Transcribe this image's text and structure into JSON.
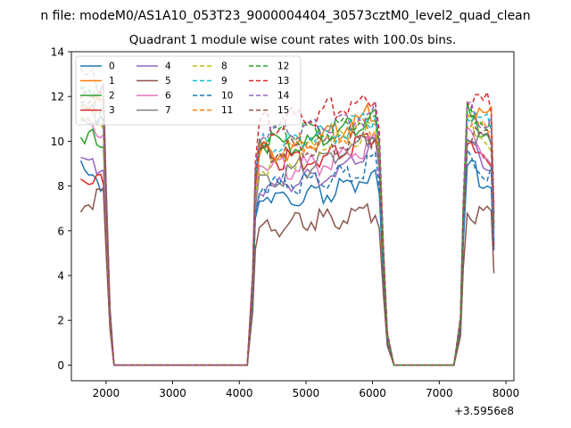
{
  "chart_data": {
    "type": "line",
    "suptitle": "n file: modeM0/AS1A10_053T23_9000004404_30573cztM0_level2_quad_clean",
    "title": "Quadrant 1 module wise count rates with 100.0s bins.",
    "xlabel": "",
    "ylabel": "",
    "offset_text": "+3.5956e8",
    "xlim": [
      1480,
      8120
    ],
    "ylim": [
      -0.7,
      14.0
    ],
    "xticks": [
      2000,
      3000,
      4000,
      5000,
      6000,
      7000,
      8000
    ],
    "yticks": [
      0,
      2,
      4,
      6,
      8,
      10,
      12,
      14
    ],
    "grid": false,
    "legend": {
      "placement": "upper-left",
      "ncol": 4
    },
    "segments": [
      {
        "x_start": 1620,
        "x_end": 1960,
        "level": 1.0,
        "drop_to": [
          0.75,
          0.25,
          0.0
        ],
        "drop_x": [
          2000,
          2060,
          2120
        ]
      },
      {
        "x_start": 4300,
        "x_end": 6080,
        "level": 1.0
      },
      {
        "x_start": 7420,
        "x_end": 7820,
        "level": 1.0
      }
    ],
    "x_grid": [
      1620,
      1680,
      1740,
      1800,
      1860,
      1920,
      1960,
      2000,
      2060,
      2120,
      4120,
      4200,
      4240,
      4300,
      4360,
      4420,
      4480,
      4540,
      4600,
      4660,
      4720,
      4780,
      4840,
      4900,
      4960,
      5020,
      5080,
      5140,
      5200,
      5260,
      5320,
      5380,
      5440,
      5500,
      5560,
      5620,
      5680,
      5740,
      5800,
      5860,
      5920,
      5980,
      6040,
      6100,
      6160,
      6220,
      6320,
      7220,
      7320,
      7360,
      7420,
      7480,
      7540,
      7600,
      7660,
      7720,
      7780,
      7820
    ],
    "series": [
      {
        "name": "0",
        "color": "#1f77b4",
        "dash": "solid",
        "levels": [
          8.9,
          8.5,
          8.0,
          7.2,
          9.0,
          8.5
        ]
      },
      {
        "name": "1",
        "color": "#ff7f0e",
        "dash": "solid",
        "levels": [
          12.3,
          12.0,
          9.6,
          9.9,
          11.8,
          11.2
        ]
      },
      {
        "name": "2",
        "color": "#2ca02c",
        "dash": "solid",
        "levels": [
          10.1,
          10.5,
          10.2,
          9.8,
          11.5,
          10.4
        ]
      },
      {
        "name": "3",
        "color": "#d62728",
        "dash": "solid",
        "levels": [
          8.8,
          8.3,
          9.8,
          8.6,
          10.6,
          8.7
        ]
      },
      {
        "name": "4",
        "color": "#9467bd",
        "dash": "solid",
        "levels": [
          9.5,
          9.0,
          8.3,
          8.1,
          10.2,
          9.1
        ]
      },
      {
        "name": "5",
        "color": "#8c564b",
        "dash": "solid",
        "levels": [
          7.5,
          8.0,
          6.3,
          6.7,
          7.2,
          6.8
        ]
      },
      {
        "name": "6",
        "color": "#e377c2",
        "dash": "solid",
        "levels": [
          11.0,
          10.6,
          9.2,
          8.7,
          10.4,
          9.6
        ]
      },
      {
        "name": "7",
        "color": "#7f7f7f",
        "dash": "solid",
        "levels": [
          11.3,
          10.9,
          8.6,
          9.0,
          10.8,
          10.0
        ]
      },
      {
        "name": "8",
        "color": "#bcbd22",
        "dash": "dashed",
        "levels": [
          10.9,
          11.2,
          9.2,
          9.7,
          11.0,
          10.2
        ]
      },
      {
        "name": "9",
        "color": "#17becf",
        "dash": "dashed",
        "levels": [
          12.8,
          12.5,
          10.1,
          10.3,
          11.4,
          10.9
        ]
      },
      {
        "name": "10",
        "color": "#1f77b4",
        "dash": "dashed",
        "levels": [
          11.6,
          11.4,
          8.2,
          8.3,
          9.4,
          8.9
        ]
      },
      {
        "name": "11",
        "color": "#ff7f0e",
        "dash": "dashed",
        "levels": [
          12.0,
          11.7,
          9.7,
          10.3,
          11.1,
          10.6
        ]
      },
      {
        "name": "12",
        "color": "#2ca02c",
        "dash": "dashed",
        "levels": [
          12.2,
          11.9,
          10.5,
          10.6,
          11.3,
          11.0
        ]
      },
      {
        "name": "13",
        "color": "#d62728",
        "dash": "dashed",
        "levels": [
          12.6,
          12.4,
          11.0,
          11.4,
          12.3,
          11.9
        ]
      },
      {
        "name": "14",
        "color": "#9467bd",
        "dash": "dashed",
        "levels": [
          13.2,
          12.9,
          10.7,
          10.9,
          11.6,
          11.0
        ]
      },
      {
        "name": "15",
        "color": "#8c564b",
        "dash": "dashed",
        "levels": [
          12.4,
          12.1,
          9.9,
          9.6,
          10.6,
          10.2
        ]
      }
    ]
  }
}
